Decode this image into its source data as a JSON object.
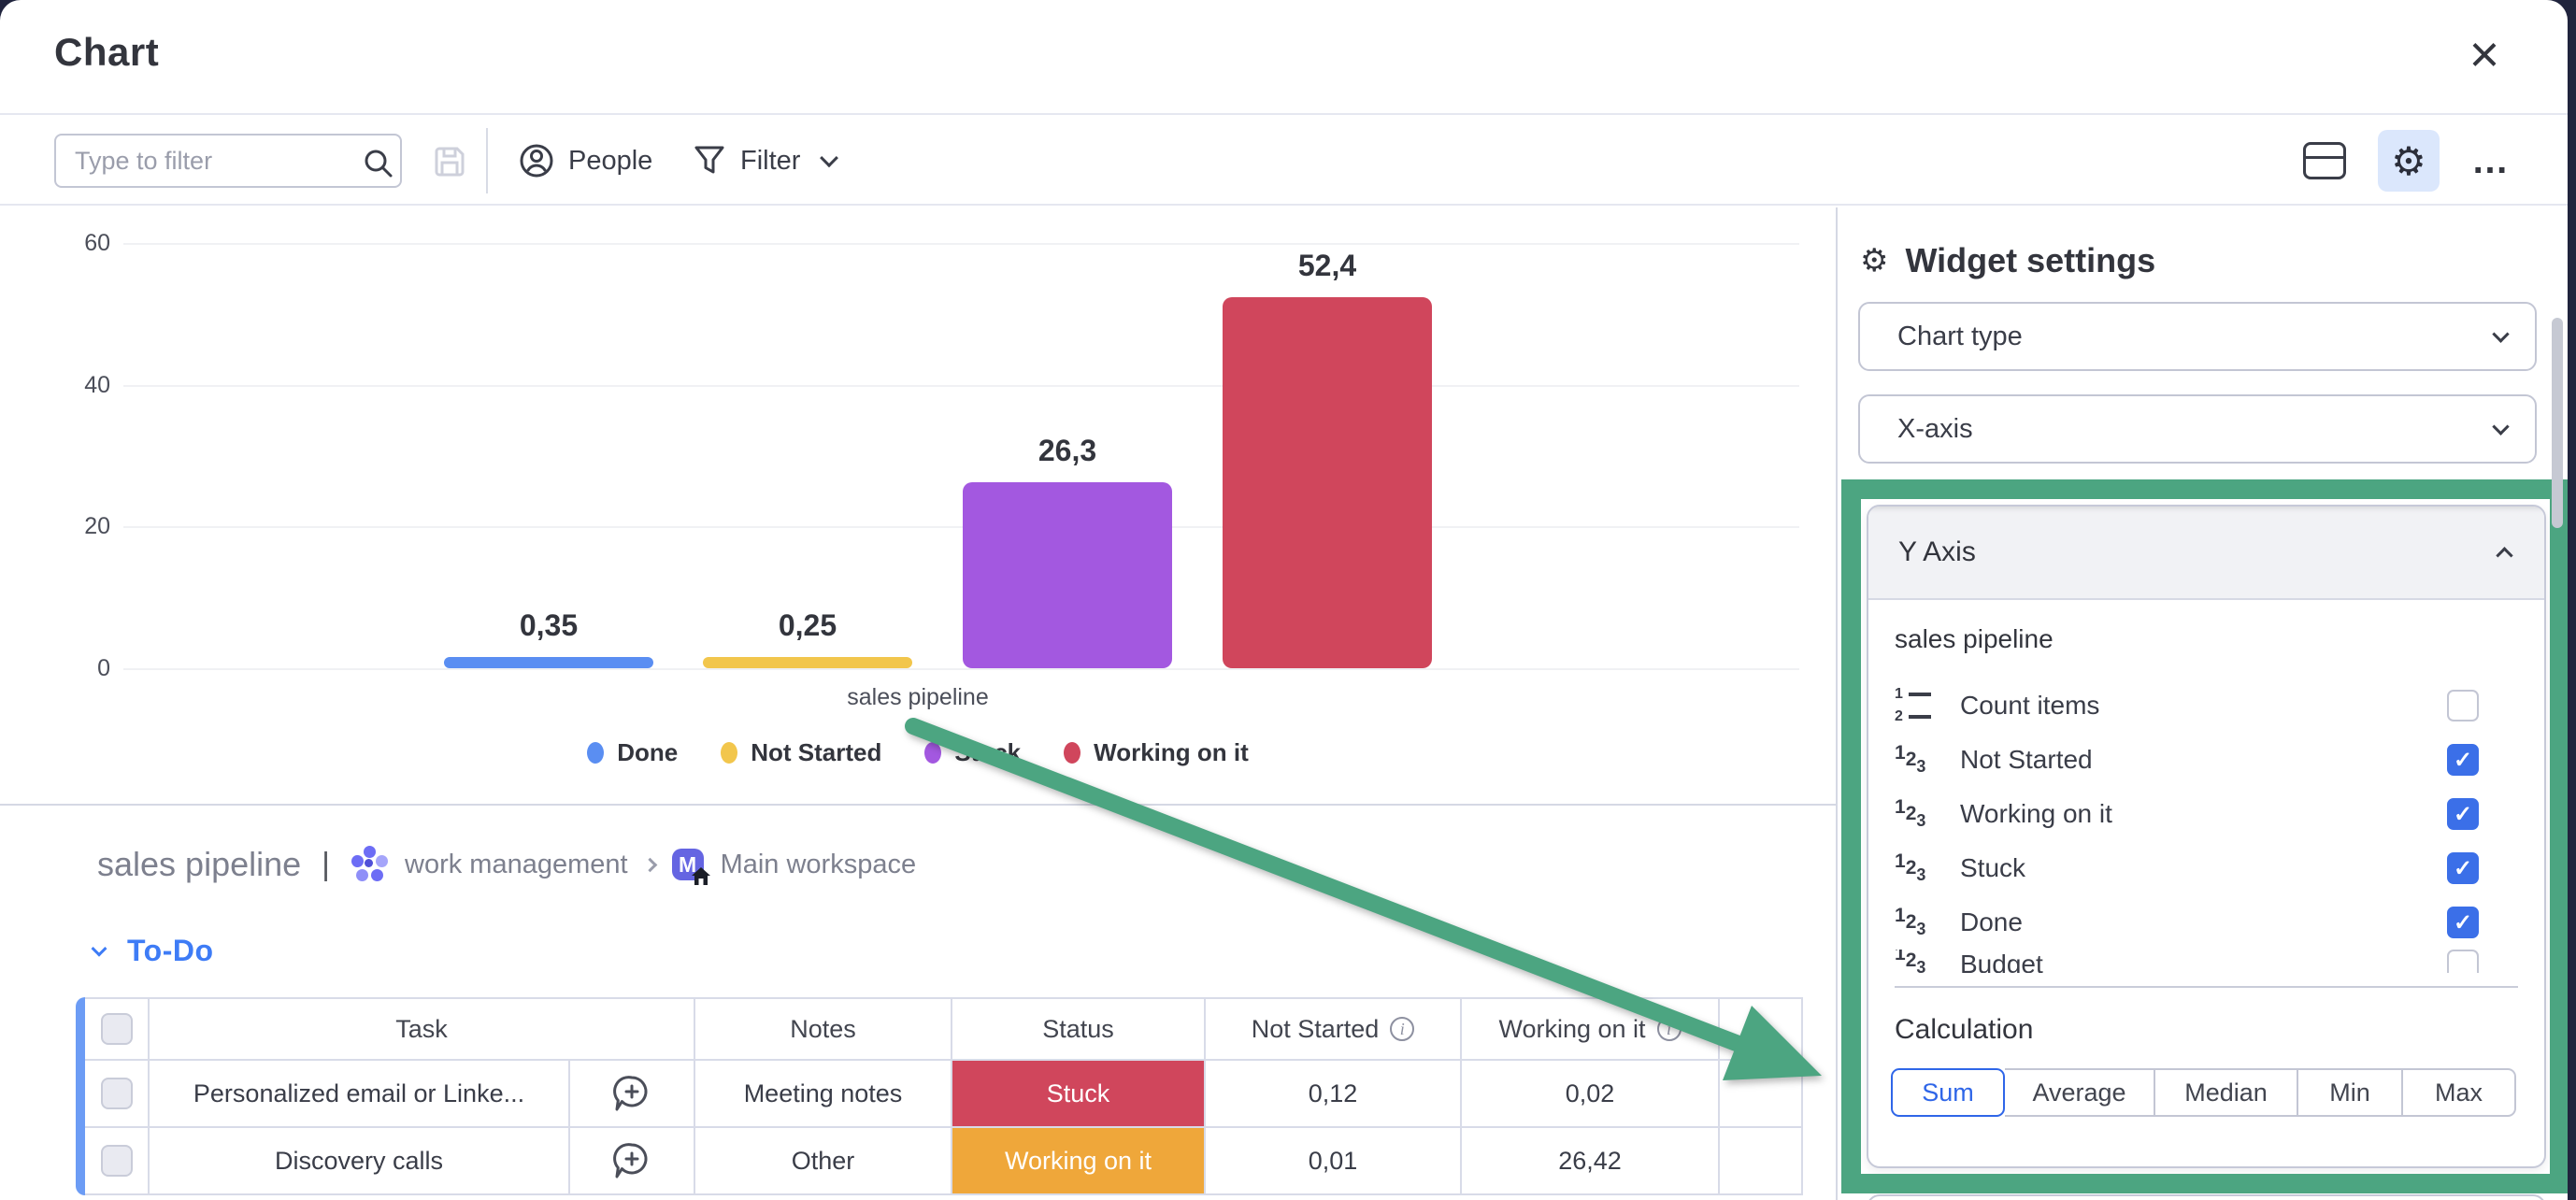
{
  "header": {
    "title": "Chart",
    "close_glyph": "×"
  },
  "toolbar": {
    "filter_placeholder": "Type to filter",
    "people_label": "People",
    "filter_label": "Filter",
    "ellipsis": "…",
    "gear_glyph": "⚙"
  },
  "chart_data": {
    "type": "bar",
    "categories": [
      "Done",
      "Not Started",
      "Stuck",
      "Working on it"
    ],
    "values": [
      0.35,
      0.25,
      26.3,
      52.4
    ],
    "value_labels": [
      "0,35",
      "0,25",
      "26,3",
      "52,4"
    ],
    "colors": [
      "#5a8ef2",
      "#f2c64c",
      "#a358e0",
      "#d0465c"
    ],
    "title": "",
    "xlabel": "sales pipeline",
    "ylabel": "",
    "ylim": [
      0,
      60
    ],
    "y_ticks": [
      0,
      20,
      40,
      60
    ],
    "grid": true,
    "legend_position": "bottom"
  },
  "board": {
    "name": "sales pipeline",
    "separator": "|",
    "app_name": "work management",
    "workspace_name": "Main workspace",
    "avatar_letter": "M",
    "group_name": "To-Do",
    "table": {
      "headers": {
        "task": "Task",
        "notes": "Notes",
        "status": "Status",
        "not_started": "Not Started",
        "working_on_it": "Working on it",
        "info_glyph": "i"
      },
      "rows": [
        {
          "task": "Personalized email or Linke...",
          "notes": "Meeting notes",
          "status": "Stuck",
          "status_color": "#d0465c",
          "not_started": "0,12",
          "working_on_it": "0,02"
        },
        {
          "task": "Discovery calls",
          "notes": "Other",
          "status": "Working on it",
          "status_color": "#efa73a",
          "not_started": "0,01",
          "working_on_it": "26,42"
        }
      ]
    }
  },
  "panel": {
    "title": "Widget settings",
    "chart_type_label": "Chart type",
    "x_axis_label": "X-axis",
    "y_axis": {
      "title": "Y Axis",
      "column_group": "sales pipeline",
      "items": [
        {
          "label": "Count items",
          "checked": false,
          "icon": "count",
          "partial": false
        },
        {
          "label": "Not Started",
          "checked": true,
          "icon": "numbers",
          "partial": false
        },
        {
          "label": "Working on it",
          "checked": true,
          "icon": "numbers",
          "partial": false
        },
        {
          "label": "Stuck",
          "checked": true,
          "icon": "numbers",
          "partial": false
        },
        {
          "label": "Done",
          "checked": true,
          "icon": "numbers",
          "partial": false
        },
        {
          "label": "Budget",
          "checked": false,
          "icon": "numbers",
          "partial": true
        }
      ],
      "check_glyph": "✓",
      "calculation_label": "Calculation",
      "calculations": [
        "Sum",
        "Average",
        "Median",
        "Min",
        "Max"
      ],
      "selected_calculation": "Sum"
    },
    "annotation_color": "#4CA581"
  }
}
